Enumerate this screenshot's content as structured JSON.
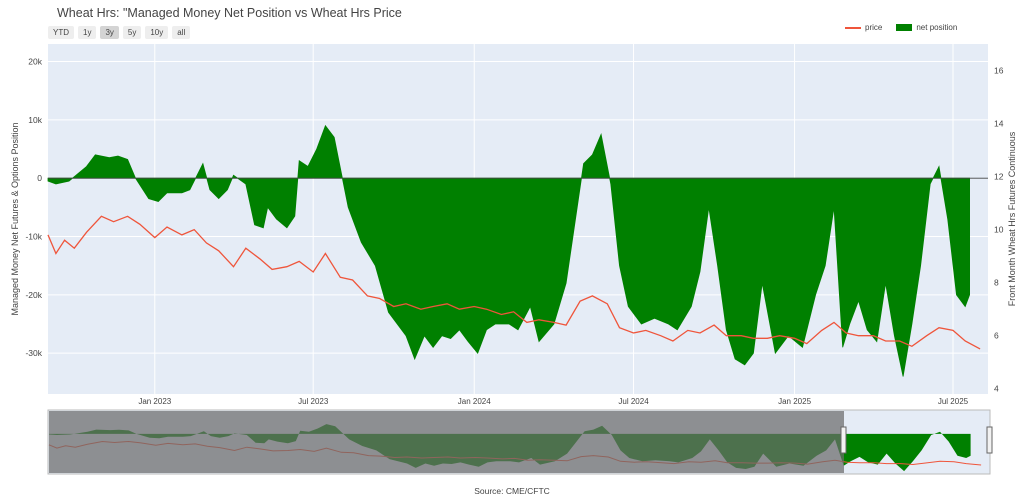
{
  "header": {
    "title": "Wheat Hrs: \"Managed Money Net Position vs Wheat Hrs Price",
    "range_buttons": [
      "YTD",
      "1y",
      "3y",
      "5y",
      "10y",
      "all"
    ],
    "active_range": "3y"
  },
  "legend": {
    "price_label": "price",
    "net_label": "net position"
  },
  "footer": {
    "source": "Source: CME/CFTC"
  },
  "colors": {
    "price": "#ef553b",
    "net": "#008000",
    "plot_bg": "#e5ecf6"
  },
  "chart_data": {
    "type": "area",
    "xlim": [
      "2022-09-01",
      "2025-08-10"
    ],
    "x_ticks": [
      "Jan 2023",
      "Jul 2023",
      "Jan 2024",
      "Jul 2024",
      "Jan 2025",
      "Jul 2025"
    ],
    "x_tick_dates": [
      "2023-01-01",
      "2023-07-01",
      "2024-01-01",
      "2024-07-01",
      "2025-01-01",
      "2025-07-01"
    ],
    "y_left": {
      "label": "Managed Money Net Futures & Options Position",
      "range": [
        -37000,
        23000
      ],
      "ticks": [
        20000,
        10000,
        0,
        -10000,
        -20000,
        -30000
      ],
      "tick_labels": [
        "20k",
        "10k",
        "0",
        "-10k",
        "-20k",
        "-30k"
      ]
    },
    "y_right": {
      "label": "Front Month Wheat Hrs Futures Continuous",
      "range": [
        3.8,
        17
      ],
      "ticks": [
        16,
        14,
        12,
        10,
        8,
        6,
        4
      ],
      "tick_labels": [
        "16",
        "14",
        "12",
        "10",
        "8",
        "6",
        "4"
      ]
    },
    "series": [
      {
        "name": "net position",
        "axis": "left",
        "points": [
          [
            "2022-09-01",
            -500
          ],
          [
            "2022-09-10",
            -1000
          ],
          [
            "2022-09-25",
            -500
          ],
          [
            "2022-10-15",
            2000
          ],
          [
            "2022-10-25",
            4000
          ],
          [
            "2022-11-10",
            3500
          ],
          [
            "2022-11-20",
            3800
          ],
          [
            "2022-12-01",
            3200
          ],
          [
            "2022-12-10",
            0
          ],
          [
            "2022-12-25",
            -3500
          ],
          [
            "2023-01-05",
            -4000
          ],
          [
            "2023-01-15",
            -2500
          ],
          [
            "2023-02-01",
            -2500
          ],
          [
            "2023-02-10",
            -2000
          ],
          [
            "2023-02-25",
            2500
          ],
          [
            "2023-03-05",
            -2000
          ],
          [
            "2023-03-15",
            -3500
          ],
          [
            "2023-03-25",
            -2000
          ],
          [
            "2023-04-01",
            500
          ],
          [
            "2023-04-15",
            -1000
          ],
          [
            "2023-04-25",
            -8000
          ],
          [
            "2023-05-05",
            -8500
          ],
          [
            "2023-05-10",
            -5000
          ],
          [
            "2023-05-20",
            -7000
          ],
          [
            "2023-06-01",
            -8500
          ],
          [
            "2023-06-10",
            -6500
          ],
          [
            "2023-06-15",
            3000
          ],
          [
            "2023-06-25",
            2000
          ],
          [
            "2023-07-05",
            5000
          ],
          [
            "2023-07-15",
            9000
          ],
          [
            "2023-07-25",
            7000
          ],
          [
            "2023-08-10",
            -5000
          ],
          [
            "2023-08-25",
            -11000
          ],
          [
            "2023-09-10",
            -15000
          ],
          [
            "2023-09-25",
            -23000
          ],
          [
            "2023-10-15",
            -27000
          ],
          [
            "2023-10-25",
            -31000
          ],
          [
            "2023-11-05",
            -27000
          ],
          [
            "2023-11-15",
            -29000
          ],
          [
            "2023-11-25",
            -27000
          ],
          [
            "2023-12-05",
            -27500
          ],
          [
            "2023-12-15",
            -26000
          ],
          [
            "2023-12-25",
            -28000
          ],
          [
            "2024-01-05",
            -30000
          ],
          [
            "2024-01-15",
            -26000
          ],
          [
            "2024-01-25",
            -25000
          ],
          [
            "2024-02-10",
            -25000
          ],
          [
            "2024-02-20",
            -26000
          ],
          [
            "2024-03-05",
            -22000
          ],
          [
            "2024-03-15",
            -28000
          ],
          [
            "2024-04-01",
            -25000
          ],
          [
            "2024-04-15",
            -18000
          ],
          [
            "2024-05-05",
            2500
          ],
          [
            "2024-05-15",
            4000
          ],
          [
            "2024-05-25",
            7500
          ],
          [
            "2024-06-05",
            -1000
          ],
          [
            "2024-06-15",
            -15000
          ],
          [
            "2024-06-25",
            -22000
          ],
          [
            "2024-07-10",
            -25000
          ],
          [
            "2024-07-25",
            -24000
          ],
          [
            "2024-08-10",
            -25000
          ],
          [
            "2024-08-20",
            -26000
          ],
          [
            "2024-09-05",
            -22000
          ],
          [
            "2024-09-15",
            -16000
          ],
          [
            "2024-09-25",
            -5000
          ],
          [
            "2024-10-05",
            -15000
          ],
          [
            "2024-10-15",
            -26000
          ],
          [
            "2024-10-25",
            -31000
          ],
          [
            "2024-11-05",
            -32000
          ],
          [
            "2024-11-15",
            -30000
          ],
          [
            "2024-11-25",
            -18000
          ],
          [
            "2024-12-10",
            -30000
          ],
          [
            "2024-12-25",
            -27000
          ],
          [
            "2025-01-10",
            -29000
          ],
          [
            "2025-01-25",
            -20000
          ],
          [
            "2025-02-05",
            -15000
          ],
          [
            "2025-02-15",
            -5000
          ],
          [
            "2025-02-25",
            -29000
          ],
          [
            "2025-03-05",
            -25000
          ],
          [
            "2025-03-15",
            -21000
          ],
          [
            "2025-03-25",
            -26000
          ],
          [
            "2025-04-05",
            -28000
          ],
          [
            "2025-04-15",
            -18000
          ],
          [
            "2025-04-25",
            -27000
          ],
          [
            "2025-05-05",
            -34000
          ],
          [
            "2025-05-15",
            -25000
          ],
          [
            "2025-05-25",
            -15000
          ],
          [
            "2025-06-05",
            -1000
          ],
          [
            "2025-06-15",
            2000
          ],
          [
            "2025-06-25",
            -7000
          ],
          [
            "2025-07-05",
            -20000
          ],
          [
            "2025-07-15",
            -22000
          ],
          [
            "2025-07-20",
            -20000
          ]
        ]
      },
      {
        "name": "price",
        "axis": "right",
        "points": [
          [
            "2022-09-01",
            9.8
          ],
          [
            "2022-09-10",
            9.1
          ],
          [
            "2022-09-20",
            9.6
          ],
          [
            "2022-10-01",
            9.3
          ],
          [
            "2022-10-15",
            9.9
          ],
          [
            "2022-11-01",
            10.5
          ],
          [
            "2022-11-15",
            10.3
          ],
          [
            "2022-12-01",
            10.5
          ],
          [
            "2022-12-15",
            10.2
          ],
          [
            "2023-01-01",
            9.7
          ],
          [
            "2023-01-15",
            10.1
          ],
          [
            "2023-02-01",
            9.8
          ],
          [
            "2023-02-15",
            10.0
          ],
          [
            "2023-03-01",
            9.5
          ],
          [
            "2023-03-15",
            9.2
          ],
          [
            "2023-04-01",
            8.6
          ],
          [
            "2023-04-15",
            9.3
          ],
          [
            "2023-05-01",
            8.9
          ],
          [
            "2023-05-15",
            8.5
          ],
          [
            "2023-06-01",
            8.6
          ],
          [
            "2023-06-15",
            8.8
          ],
          [
            "2023-07-01",
            8.4
          ],
          [
            "2023-07-15",
            9.1
          ],
          [
            "2023-08-01",
            8.2
          ],
          [
            "2023-08-15",
            8.1
          ],
          [
            "2023-09-01",
            7.5
          ],
          [
            "2023-09-15",
            7.4
          ],
          [
            "2023-10-01",
            7.1
          ],
          [
            "2023-10-15",
            7.2
          ],
          [
            "2023-11-01",
            7.0
          ],
          [
            "2023-11-15",
            7.1
          ],
          [
            "2023-12-01",
            7.2
          ],
          [
            "2023-12-15",
            7.0
          ],
          [
            "2024-01-01",
            7.1
          ],
          [
            "2024-01-15",
            7.0
          ],
          [
            "2024-02-01",
            6.8
          ],
          [
            "2024-02-15",
            6.9
          ],
          [
            "2024-03-01",
            6.5
          ],
          [
            "2024-03-15",
            6.6
          ],
          [
            "2024-04-01",
            6.5
          ],
          [
            "2024-04-15",
            6.4
          ],
          [
            "2024-05-01",
            7.3
          ],
          [
            "2024-05-15",
            7.5
          ],
          [
            "2024-06-01",
            7.2
          ],
          [
            "2024-06-15",
            6.3
          ],
          [
            "2024-07-01",
            6.1
          ],
          [
            "2024-07-15",
            6.2
          ],
          [
            "2024-08-01",
            6.0
          ],
          [
            "2024-08-15",
            5.8
          ],
          [
            "2024-09-01",
            6.2
          ],
          [
            "2024-09-15",
            6.1
          ],
          [
            "2024-10-01",
            6.4
          ],
          [
            "2024-10-15",
            6.0
          ],
          [
            "2024-11-01",
            6.0
          ],
          [
            "2024-11-15",
            5.9
          ],
          [
            "2024-12-01",
            5.9
          ],
          [
            "2024-12-15",
            6.0
          ],
          [
            "2025-01-01",
            5.9
          ],
          [
            "2025-01-15",
            5.7
          ],
          [
            "2025-02-01",
            6.2
          ],
          [
            "2025-02-15",
            6.5
          ],
          [
            "2025-03-01",
            6.1
          ],
          [
            "2025-03-15",
            6.0
          ],
          [
            "2025-04-01",
            6.0
          ],
          [
            "2025-04-15",
            5.8
          ],
          [
            "2025-05-01",
            5.8
          ],
          [
            "2025-05-15",
            5.6
          ],
          [
            "2025-06-01",
            6.0
          ],
          [
            "2025-06-15",
            6.3
          ],
          [
            "2025-07-01",
            6.2
          ],
          [
            "2025-07-15",
            5.8
          ],
          [
            "2025-08-01",
            5.5
          ]
        ]
      }
    ],
    "title": "Wheat Hrs: \"Managed Money Net Position vs Wheat Hrs Price",
    "legend_position": "top-right",
    "grid": true
  }
}
